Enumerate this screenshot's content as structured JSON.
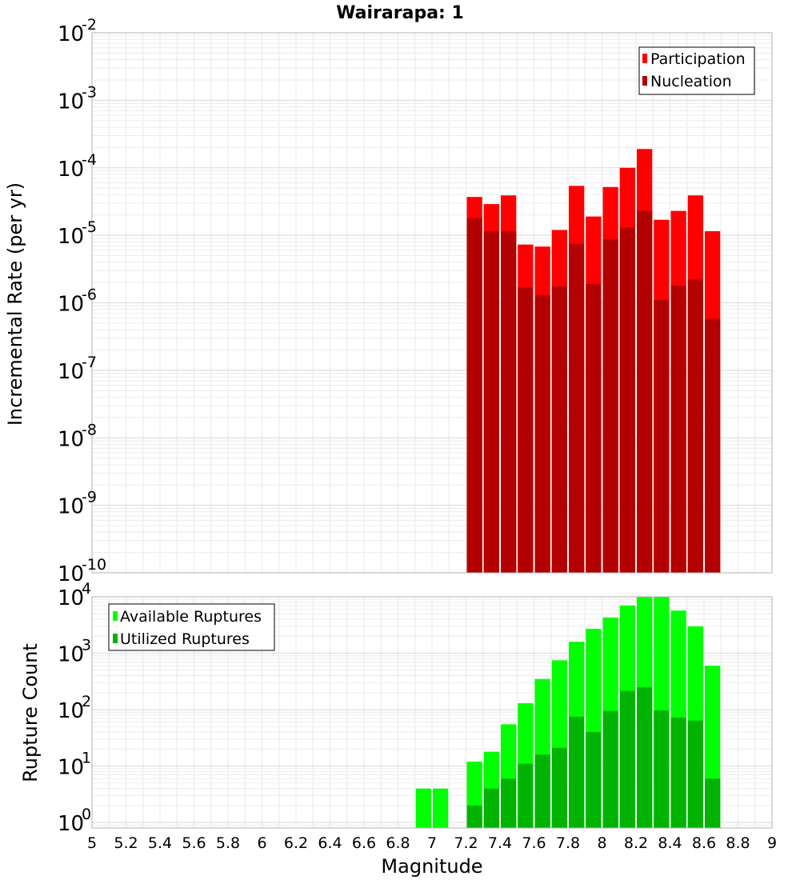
{
  "chart_data": [
    {
      "type": "bar",
      "panel": "top",
      "title": "Wairarapa: 1",
      "ylabel": "Incremental Rate (per yr)",
      "yscale": "log",
      "ylim": [
        1e-10,
        0.01
      ],
      "y_tick_exponents": [
        "-10",
        "-9",
        "-8",
        "-7",
        "-6",
        "-5",
        "-4",
        "-3",
        "-2"
      ],
      "legend_position": "top-right",
      "x": [
        7.25,
        7.35,
        7.45,
        7.55,
        7.65,
        7.75,
        7.85,
        7.95,
        8.05,
        8.15,
        8.25,
        8.35,
        8.45,
        8.55,
        8.65
      ],
      "series": [
        {
          "name": "Participation",
          "color": "#ff0000",
          "values": [
            3.7e-05,
            2.9e-05,
            3.9e-05,
            7.3e-06,
            6.8e-06,
            1.2e-05,
            5.4e-05,
            1.9e-05,
            5.2e-05,
            0.0001,
            0.00019,
            1.7e-05,
            2.3e-05,
            3.9e-05,
            1.15e-05
          ]
        },
        {
          "name": "Nucleation",
          "color": "#b30000",
          "values": [
            1.8e-05,
            1.15e-05,
            1.15e-05,
            1.7e-06,
            1.3e-06,
            1.75e-06,
            7.5e-06,
            1.9e-06,
            8.8e-06,
            1.3e-05,
            2.3e-05,
            1.1e-06,
            1.8e-06,
            2.2e-06,
            5.8e-07
          ]
        }
      ]
    },
    {
      "type": "bar",
      "panel": "bottom",
      "xlabel": "Magnitude",
      "ylabel": "Rupture Count",
      "yscale": "log",
      "ylim": [
        0.8,
        10000
      ],
      "y_tick_exponents": [
        "0",
        "1",
        "2",
        "3",
        "4"
      ],
      "xlim": [
        5,
        9
      ],
      "x_ticks": [
        "5",
        "5.2",
        "5.4",
        "5.6",
        "5.8",
        "6",
        "6.2",
        "6.4",
        "6.6",
        "6.8",
        "7",
        "7.2",
        "7.4",
        "7.6",
        "7.8",
        "8",
        "8.2",
        "8.4",
        "8.6",
        "8.8",
        "9"
      ],
      "legend_position": "top-left",
      "x": [
        6.95,
        7.05,
        7.25,
        7.35,
        7.45,
        7.55,
        7.65,
        7.75,
        7.85,
        7.95,
        8.05,
        8.15,
        8.25,
        8.35,
        8.45,
        8.55,
        8.65
      ],
      "series": [
        {
          "name": "Available Ruptures",
          "color": "#00ff00",
          "values": [
            4,
            4,
            12,
            18,
            55,
            130,
            350,
            750,
            1600,
            2700,
            4300,
            7000,
            10000,
            10000,
            5700,
            3000,
            600
          ]
        },
        {
          "name": "Utilized Ruptures",
          "color": "#00b300",
          "values": [
            0,
            0,
            2,
            4,
            6,
            11,
            16,
            21,
            75,
            40,
            95,
            215,
            250,
            97,
            72,
            64,
            6
          ]
        }
      ]
    }
  ]
}
